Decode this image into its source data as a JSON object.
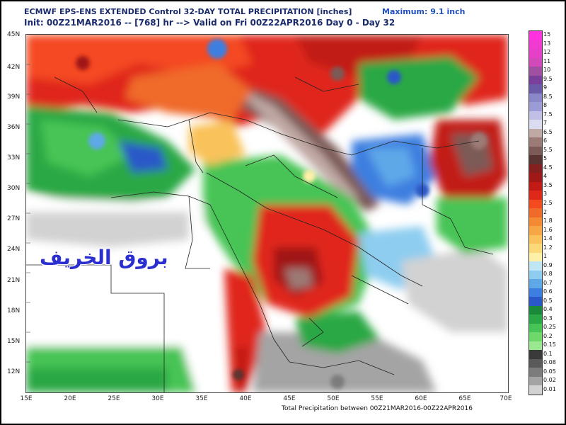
{
  "header": {
    "title_line1": "ECMWF EPS-ENS EXTENDED Control 32-DAY TOTAL PRECIPITATION [inches]",
    "title_line2": "Init: 00Z21MAR2016 -- [768] hr --> Valid on Fri 00Z22APR2016  Day 0 - Day 32",
    "maximum": "Maximum: 9.1 inch"
  },
  "footer": "Total Precipitation between 00Z21MAR2016-00Z22APR2016",
  "watermark": "بروق الخريف",
  "axes": {
    "lat_labels": [
      "45N",
      "42N",
      "39N",
      "36N",
      "33N",
      "30N",
      "27N",
      "24N",
      "21N",
      "18N",
      "15N",
      "12N"
    ],
    "lon_labels": [
      "15E",
      "20E",
      "25E",
      "30E",
      "35E",
      "40E",
      "45E",
      "50E",
      "55E",
      "60E",
      "65E",
      "70E"
    ]
  },
  "legend": {
    "levels": [
      {
        "label": "15",
        "color": "#ff33dd"
      },
      {
        "label": "13",
        "color": "#f03ad0"
      },
      {
        "label": "12",
        "color": "#e640c8"
      },
      {
        "label": "11",
        "color": "#d24ab9"
      },
      {
        "label": "10",
        "color": "#a050a0"
      },
      {
        "label": "9.5",
        "color": "#7a3f9a"
      },
      {
        "label": "9",
        "color": "#6a5aa8"
      },
      {
        "label": "8.5",
        "color": "#8a88c8"
      },
      {
        "label": "8",
        "color": "#9b9bd5"
      },
      {
        "label": "7.5",
        "color": "#c0c0e6"
      },
      {
        "label": "7",
        "color": "#dcdcf0"
      },
      {
        "label": "6.5",
        "color": "#c0a8a4"
      },
      {
        "label": "6",
        "color": "#9c7a76"
      },
      {
        "label": "5.5",
        "color": "#7c5a56"
      },
      {
        "label": "5",
        "color": "#5a3430"
      },
      {
        "label": "4.5",
        "color": "#842020"
      },
      {
        "label": "4",
        "color": "#a01818"
      },
      {
        "label": "3.5",
        "color": "#c21a14"
      },
      {
        "label": "3",
        "color": "#e0281a"
      },
      {
        "label": "2.5",
        "color": "#f44a20"
      },
      {
        "label": "2",
        "color": "#f06a2a"
      },
      {
        "label": "1.8",
        "color": "#f58a35"
      },
      {
        "label": "1.6",
        "color": "#f7a645"
      },
      {
        "label": "1.4",
        "color": "#f9c25a"
      },
      {
        "label": "1.2",
        "color": "#fbd878"
      },
      {
        "label": "1",
        "color": "#fff0a8"
      },
      {
        "label": "0.9",
        "color": "#bfe6f2"
      },
      {
        "label": "0.8",
        "color": "#8ecdf0"
      },
      {
        "label": "0.7",
        "color": "#5fa8e8"
      },
      {
        "label": "0.6",
        "color": "#3c7fe0"
      },
      {
        "label": "0.5",
        "color": "#2a58c8"
      },
      {
        "label": "0.4",
        "color": "#1a8a3a"
      },
      {
        "label": "0.3",
        "color": "#2aa845"
      },
      {
        "label": "0.25",
        "color": "#46c455"
      },
      {
        "label": "0.2",
        "color": "#6ed86a"
      },
      {
        "label": "0.15",
        "color": "#9ae890"
      },
      {
        "label": "0.1",
        "color": "#3a3a3a"
      },
      {
        "label": "0.08",
        "color": "#5a5a5a"
      },
      {
        "label": "0.05",
        "color": "#7c7c7c"
      },
      {
        "label": "0.02",
        "color": "#a4a4a4"
      },
      {
        "label": "0.01",
        "color": "#d2d2d2"
      }
    ]
  }
}
